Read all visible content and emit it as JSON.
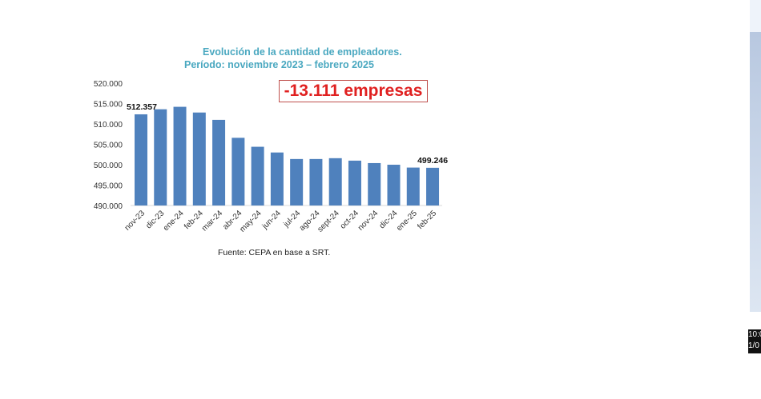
{
  "chart_data": {
    "type": "bar",
    "title": "Evolución de la cantidad de empleadores.",
    "subtitle": "Período: noviembre 2023 – febrero 2025",
    "categories": [
      "nov-23",
      "dic-23",
      "ene-24",
      "feb-24",
      "mar-24",
      "abr-24",
      "may-24",
      "jun-24",
      "jul-24",
      "ago-24",
      "sept-24",
      "oct-24",
      "nov-24",
      "dic-24",
      "ene-25",
      "feb-25"
    ],
    "values": [
      512357,
      513600,
      514200,
      512800,
      511000,
      506600,
      504400,
      503000,
      501400,
      501400,
      501600,
      501000,
      500400,
      500000,
      499300,
      499246
    ],
    "data_labels": {
      "first": "512.357",
      "last": "499.246"
    },
    "yticks": [
      "490.000",
      "495.000",
      "500.000",
      "505.000",
      "510.000",
      "515.000",
      "520.000"
    ],
    "ylim": [
      490000,
      520000
    ],
    "xlabel": "",
    "ylabel": "",
    "grid": false,
    "bar_color": "#4f81bd",
    "annotation": "-13.111 empresas",
    "annotation_color": "#e02020",
    "source": "Fuente: CEPA en base a SRT."
  },
  "taskbar": {
    "time": "10:0",
    "date": "1/0"
  }
}
